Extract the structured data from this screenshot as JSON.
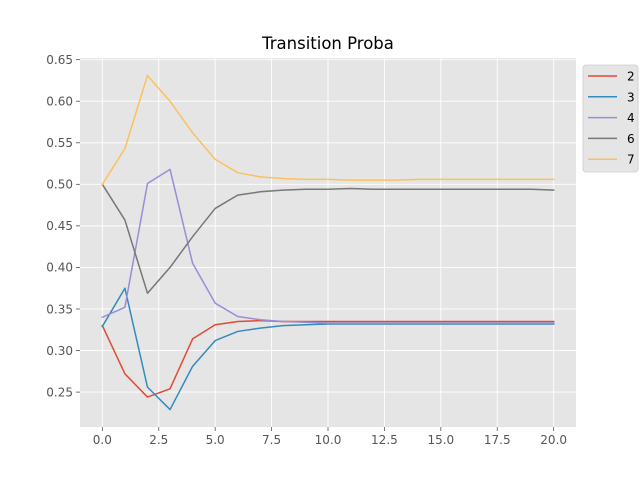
{
  "chart_data": {
    "type": "line",
    "title": "Transition Proba",
    "xlabel": "",
    "ylabel": "",
    "xlim": [
      -0.99,
      20.99
    ],
    "ylim": [
      0.208,
      0.652
    ],
    "x_ticks": [
      0.0,
      2.5,
      5.0,
      7.5,
      10.0,
      12.5,
      15.0,
      17.5,
      20.0
    ],
    "x_tick_labels": [
      "0.0",
      "2.5",
      "5.0",
      "7.5",
      "10.0",
      "12.5",
      "15.0",
      "17.5",
      "20.0"
    ],
    "y_ticks": [
      0.25,
      0.3,
      0.35,
      0.4,
      0.45,
      0.5,
      0.55,
      0.6,
      0.65
    ],
    "y_tick_labels": [
      "0.25",
      "0.30",
      "0.35",
      "0.40",
      "0.45",
      "0.50",
      "0.55",
      "0.60",
      "0.65"
    ],
    "grid": true,
    "legend_position": "outside-top-right",
    "x": [
      0,
      1,
      2,
      3,
      4,
      5,
      6,
      7,
      8,
      9,
      10,
      11,
      12,
      13,
      14,
      15,
      16,
      17,
      18,
      19,
      20
    ],
    "series": [
      {
        "name": "2",
        "color": "#E24A33",
        "values": [
          0.33,
          0.272,
          0.244,
          0.254,
          0.314,
          0.331,
          0.335,
          0.336,
          0.335,
          0.335,
          0.335,
          0.335,
          0.335,
          0.335,
          0.335,
          0.335,
          0.335,
          0.335,
          0.335,
          0.335,
          0.335
        ]
      },
      {
        "name": "3",
        "color": "#348ABD",
        "values": [
          0.329,
          0.375,
          0.256,
          0.229,
          0.281,
          0.312,
          0.323,
          0.327,
          0.33,
          0.331,
          0.332,
          0.332,
          0.332,
          0.332,
          0.332,
          0.332,
          0.332,
          0.332,
          0.332,
          0.332,
          0.332
        ]
      },
      {
        "name": "4",
        "color": "#988ED5",
        "values": [
          0.34,
          0.352,
          0.501,
          0.518,
          0.405,
          0.357,
          0.341,
          0.337,
          0.335,
          0.334,
          0.333,
          0.333,
          0.333,
          0.333,
          0.333,
          0.333,
          0.333,
          0.333,
          0.333,
          0.333,
          0.333
        ]
      },
      {
        "name": "6",
        "color": "#777777",
        "values": [
          0.5,
          0.457,
          0.369,
          0.4,
          0.437,
          0.471,
          0.487,
          0.491,
          0.493,
          0.494,
          0.494,
          0.495,
          0.494,
          0.494,
          0.494,
          0.494,
          0.494,
          0.494,
          0.494,
          0.494,
          0.493
        ]
      },
      {
        "name": "7",
        "color": "#FBC15E",
        "values": [
          0.5,
          0.543,
          0.631,
          0.6,
          0.562,
          0.53,
          0.514,
          0.509,
          0.507,
          0.506,
          0.506,
          0.505,
          0.505,
          0.505,
          0.506,
          0.506,
          0.506,
          0.506,
          0.506,
          0.506,
          0.506
        ]
      }
    ],
    "colors": {
      "plot_background": "#E5E5E5",
      "grid": "#FFFFFF",
      "tick_label": "#555555",
      "title": "#000000"
    }
  }
}
